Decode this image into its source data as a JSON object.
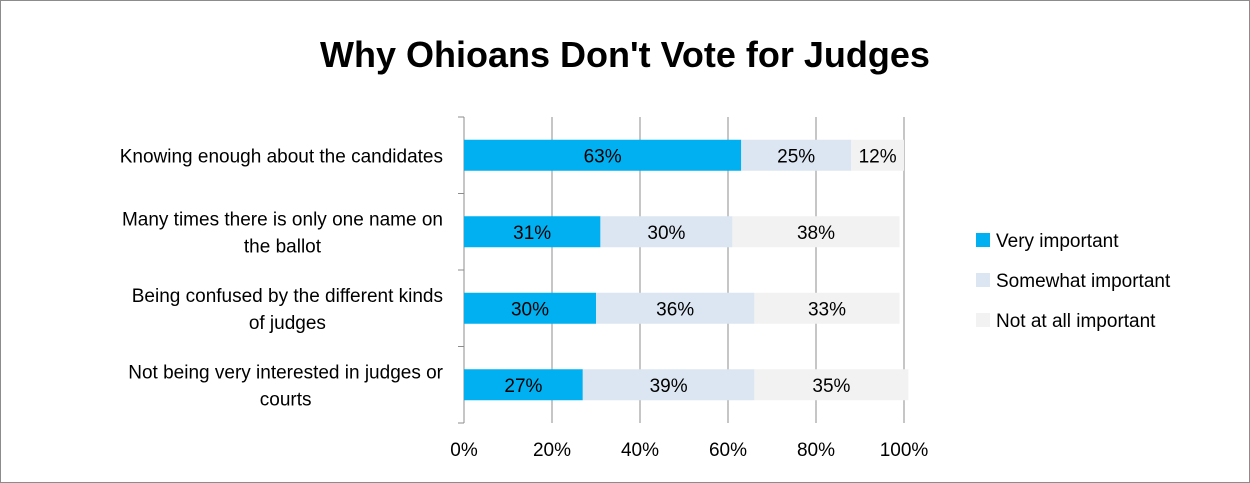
{
  "chart_data": {
    "type": "bar",
    "orientation": "horizontal",
    "stacked": true,
    "title": "Why Ohioans Don't Vote for Judges",
    "categories": [
      "Knowing enough about the candidates",
      "Many times there is only one name on the ballot",
      "Being confused by the different kinds of judges",
      "Not being very interested in judges or courts"
    ],
    "series": [
      {
        "name": "Very important",
        "color": "#00b0f0",
        "values": [
          63,
          31,
          30,
          27
        ]
      },
      {
        "name": "Somewhat important",
        "color": "#dce6f2",
        "values": [
          25,
          30,
          36,
          39
        ]
      },
      {
        "name": "Not at all important",
        "color": "#f2f2f2",
        "values": [
          12,
          38,
          33,
          35
        ]
      }
    ],
    "value_suffix": "%",
    "xlim": [
      0,
      100
    ],
    "x_ticks": [
      "0%",
      "20%",
      "40%",
      "60%",
      "80%",
      "100%"
    ],
    "grid": true,
    "legend_position": "right"
  }
}
